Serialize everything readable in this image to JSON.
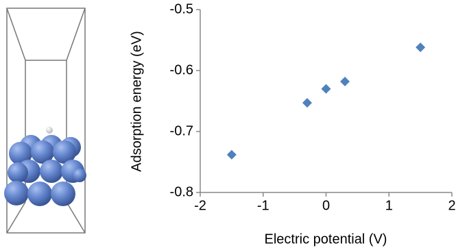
{
  "chart_data": {
    "type": "scatter",
    "x_label": "Electric potential (V)",
    "y_label": "Adsorption energy (eV)",
    "x": [
      -1.5,
      -0.3,
      0,
      0.3,
      1.5
    ],
    "values": [
      -0.738,
      -0.653,
      -0.63,
      -0.618,
      -0.562
    ],
    "color": "#4f81bd",
    "xlim": [
      -2,
      2
    ],
    "xticks": [
      -2,
      -1,
      0,
      1,
      2
    ],
    "ylim": [
      -0.8,
      -0.5
    ],
    "yticks": [
      -0.8,
      -0.7,
      -0.6,
      -0.5
    ],
    "grid": false
  }
}
